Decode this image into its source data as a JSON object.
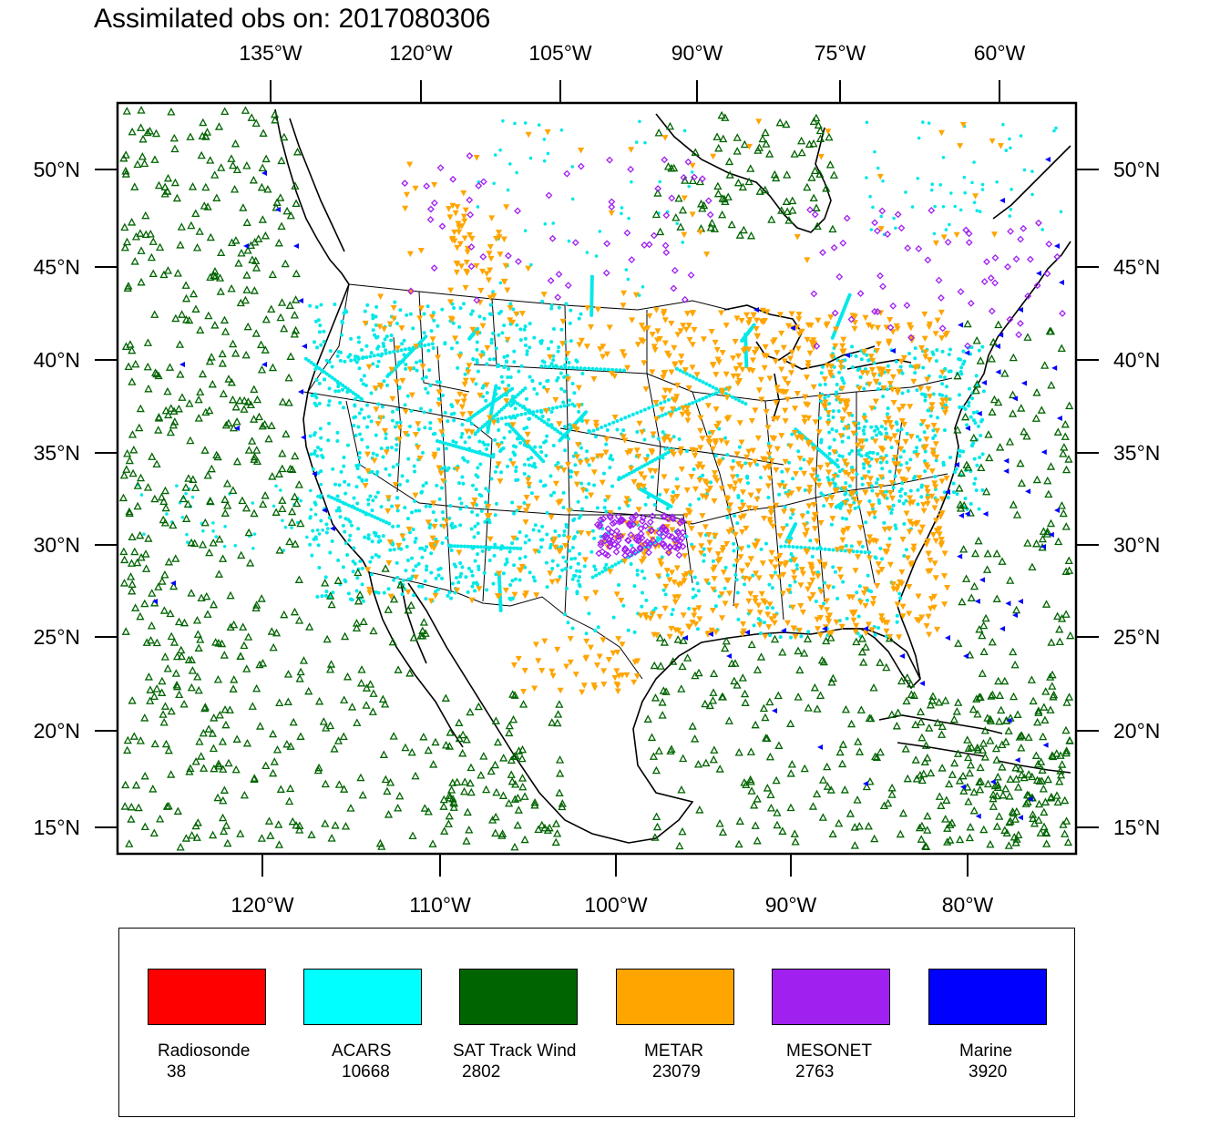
{
  "title": "Assimilated obs on: 2017080306",
  "map": {
    "top_lon_labels": [
      "135°W",
      "120°W",
      "105°W",
      "90°W",
      "75°W",
      "60°W"
    ],
    "bottom_lon_labels": [
      "120°W",
      "110°W",
      "100°W",
      "90°W",
      "80°W"
    ],
    "left_lat_labels": [
      "50°N",
      "45°N",
      "40°N",
      "35°N",
      "30°N",
      "25°N",
      "20°N",
      "15°N"
    ],
    "right_lat_labels": [
      "50°N",
      "45°N",
      "40°N",
      "35°N",
      "30°N",
      "25°N",
      "20°N",
      "15°N"
    ]
  },
  "legend": [
    {
      "name": "Radiosonde",
      "count": "38",
      "color": "#ff0000"
    },
    {
      "name": "ACARS",
      "count": "10668",
      "color": "#00ffff"
    },
    {
      "name": "SAT Track Wind",
      "count": "2802",
      "color": "#006400"
    },
    {
      "name": "METAR",
      "count": "23079",
      "color": "#ffa500"
    },
    {
      "name": "MESONET",
      "count": "2763",
      "color": "#a020f0"
    },
    {
      "name": "Marine",
      "count": "3920",
      "color": "#0000ff"
    }
  ],
  "colors": {
    "acars": "#00e8e8",
    "sat": "#006400",
    "metar": "#ffa500",
    "mesonet": "#a020f0",
    "marine": "#0000ff"
  }
}
